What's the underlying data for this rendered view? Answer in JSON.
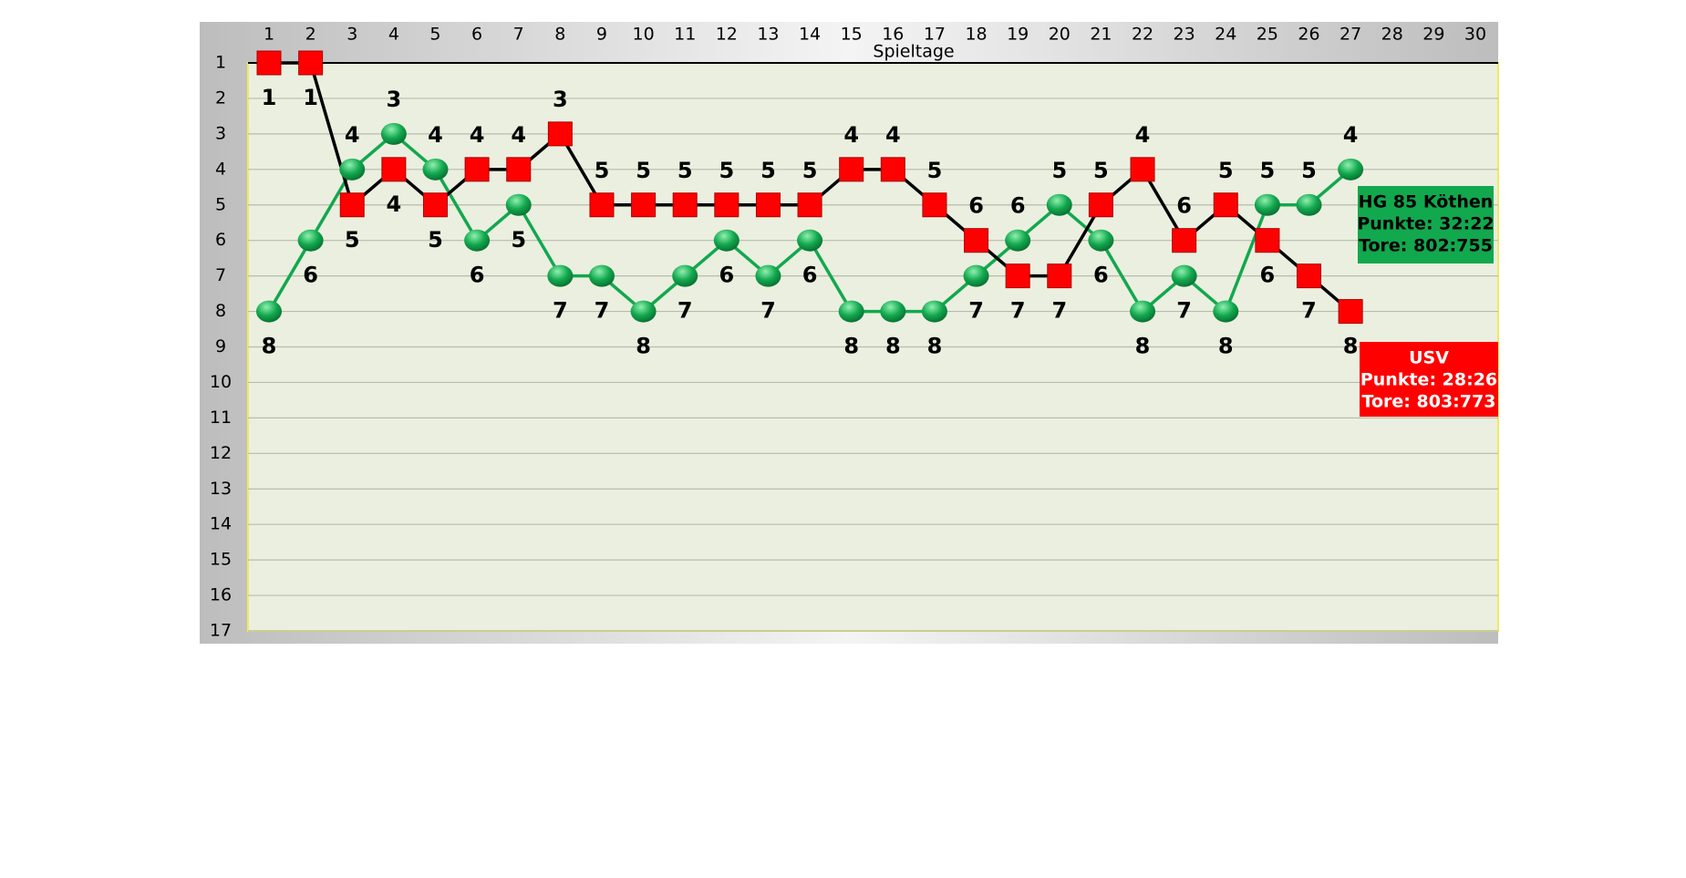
{
  "chart_data": {
    "type": "line",
    "x_label": "Spieltage",
    "categories": [
      "1",
      "2",
      "3",
      "4",
      "5",
      "6",
      "7",
      "8",
      "9",
      "10",
      "11",
      "12",
      "13",
      "14",
      "15",
      "16",
      "17",
      "18",
      "19",
      "20",
      "21",
      "22",
      "23",
      "24",
      "25",
      "26",
      "27",
      "28",
      "29",
      "30"
    ],
    "ylim": [
      1,
      17
    ],
    "y_inverted": true,
    "yticks": [
      1,
      2,
      3,
      4,
      5,
      6,
      7,
      8,
      9,
      10,
      11,
      12,
      13,
      14,
      15,
      16,
      17
    ],
    "grid": true,
    "series": [
      {
        "name": "HG 85 Köthen",
        "color": "#12a84e",
        "marker": "circle",
        "info": [
          "Punkte: 32:22",
          "Tore: 802:755"
        ],
        "values": [
          8,
          6,
          4,
          3,
          4,
          6,
          5,
          7,
          7,
          8,
          7,
          6,
          7,
          6,
          8,
          8,
          8,
          7,
          6,
          5,
          6,
          8,
          7,
          8,
          5,
          5,
          4,
          null,
          null,
          null
        ]
      },
      {
        "name": "USV",
        "color": "#ff0000",
        "line_color": "#000000",
        "marker": "square",
        "info": [
          "Punkte: 28:26",
          "Tore: 803:773"
        ],
        "values": [
          1,
          1,
          5,
          4,
          5,
          4,
          4,
          3,
          5,
          5,
          5,
          5,
          5,
          5,
          4,
          4,
          5,
          6,
          7,
          7,
          5,
          4,
          6,
          5,
          6,
          7,
          8,
          null,
          null,
          null
        ]
      }
    ]
  }
}
